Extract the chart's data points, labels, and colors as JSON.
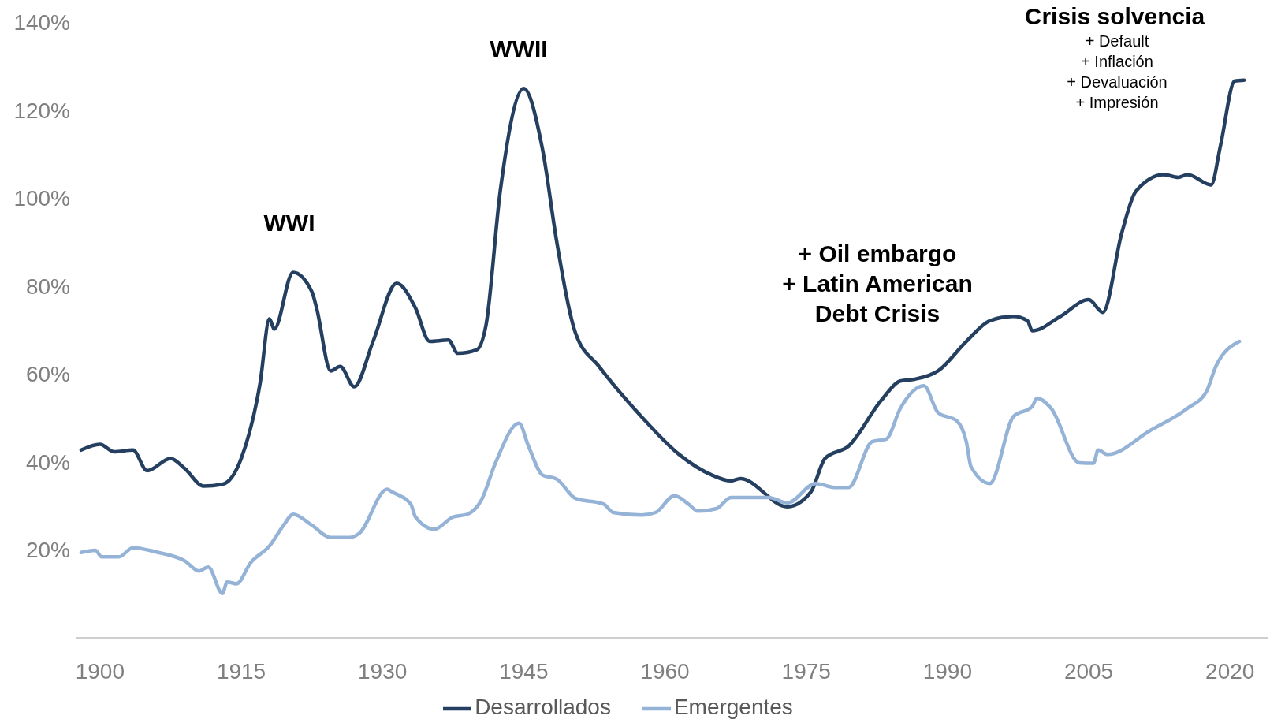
{
  "chart_data": {
    "type": "line",
    "xlim": [
      1897.5,
      2024
    ],
    "xticks": [
      1900,
      1915,
      1930,
      1945,
      1960,
      1975,
      1990,
      2005,
      2020
    ],
    "ylim": [
      0,
      140
    ],
    "yticks": [
      {
        "value": 20,
        "label": "20%"
      },
      {
        "value": 40,
        "label": "40%"
      },
      {
        "value": 60,
        "label": "60%"
      },
      {
        "value": 80,
        "label": "80%"
      },
      {
        "value": 100,
        "label": "100%"
      },
      {
        "value": 120,
        "label": "120%"
      },
      {
        "value": 140,
        "label": "140%"
      }
    ],
    "grid": false,
    "legend": "bottom",
    "marker": "none",
    "line_style": "solid",
    "annotations": [
      "WWI",
      "WWII",
      "+ Oil embargo\n+ Latin American\nDebt Crisis",
      "Crisis solvencia",
      "+ Default\n+ Inflación\n+ Devaluación\n+ Impresión"
    ],
    "series": [
      {
        "name": "Desarrollados",
        "color": "#243f60",
        "x": [
          1898,
          1900,
          1901.5,
          1903.5,
          1905,
          1907.5,
          1909,
          1911,
          1913,
          1915,
          1917,
          1918,
          1918.5,
          1920.5,
          1922.5,
          1923,
          1924.5,
          1925.5,
          1927,
          1929,
          1931.5,
          1933.5,
          1935,
          1937,
          1938,
          1940,
          1941,
          1942.5,
          1945,
          1947,
          1948.5,
          1950.5,
          1953,
          1957.5,
          1961.5,
          1965,
          1967,
          1968,
          1973,
          1975.5,
          1977,
          1979.5,
          1983,
          1985,
          1986.5,
          1989,
          1992,
          1994.5,
          1997,
          1998.5,
          1999,
          2002,
          2005,
          2006.5,
          2008.5,
          2010,
          2013,
          2014.5,
          2015.5,
          2018,
          2019,
          2020.5,
          2021.5
        ],
        "values": [
          42.7,
          44,
          42.3,
          42.7,
          38,
          40.8,
          38.5,
          34.5,
          34.9,
          40.8,
          57.9,
          72.5,
          70.2,
          83.1,
          78.7,
          75,
          60.7,
          61.7,
          57.1,
          67.4,
          80.6,
          75,
          67.4,
          67.7,
          64.7,
          65.5,
          71.2,
          101.5,
          124.9,
          111,
          90.1,
          69.3,
          61.7,
          50.3,
          41.7,
          37,
          35.7,
          36.2,
          29.8,
          33.2,
          40.8,
          43.6,
          54.1,
          58.4,
          58.8,
          60.7,
          67.4,
          72.1,
          73.1,
          72.1,
          69.8,
          73.1,
          76.9,
          74,
          92,
          101.5,
          105.3,
          104.7,
          105.3,
          103,
          112,
          126.6,
          126.8
        ]
      },
      {
        "name": "Emergentes",
        "color": "#95b3d7",
        "x": [
          1898,
          1899.5,
          1900.2,
          1902,
          1903.5,
          1906,
          1909,
          1910.5,
          1911.5,
          1913,
          1913.5,
          1914.5,
          1916,
          1918,
          1919.5,
          1920.5,
          1922.5,
          1924.5,
          1926.5,
          1927.5,
          1930.5,
          1931,
          1933,
          1933.5,
          1935.5,
          1937.5,
          1939,
          1940.5,
          1942,
          1944.5,
          1945.5,
          1947,
          1948.5,
          1950.5,
          1953.5,
          1954.5,
          1957.5,
          1959,
          1961,
          1962.5,
          1963.5,
          1965.5,
          1967,
          1971,
          1973,
          1976,
          1978,
          1979.5,
          1982,
          1983.5,
          1985,
          1987.5,
          1989,
          1991,
          1992,
          1992.5,
          1994.5,
          1997,
          1999,
          1999.5,
          2001,
          2004,
          2005.5,
          2006,
          2007,
          2011.5,
          2015.5,
          2017.5,
          2018.5,
          2021
        ],
        "values": [
          19.4,
          19.9,
          18.4,
          18.4,
          20.5,
          19.5,
          17.5,
          15.2,
          16.1,
          10.1,
          12.7,
          12.3,
          17.1,
          20.9,
          25.6,
          28.1,
          25.6,
          22.8,
          22.8,
          23.7,
          33.8,
          33.2,
          30.4,
          27.5,
          24.7,
          27.5,
          28.1,
          31.3,
          39.8,
          48.8,
          43.6,
          37,
          36.1,
          31.7,
          30.4,
          28.5,
          27.9,
          28.5,
          32.3,
          30.4,
          28.8,
          29.4,
          31.9,
          31.9,
          30.7,
          35.1,
          34.2,
          34.2,
          44.6,
          45.2,
          52.2,
          57.3,
          51.2,
          49.3,
          44.6,
          38.9,
          35.1,
          50.3,
          52.6,
          54.5,
          52.2,
          39.8,
          39.7,
          42.7,
          41.7,
          47.1,
          52.2,
          56,
          61.7,
          67.4
        ]
      }
    ]
  }
}
